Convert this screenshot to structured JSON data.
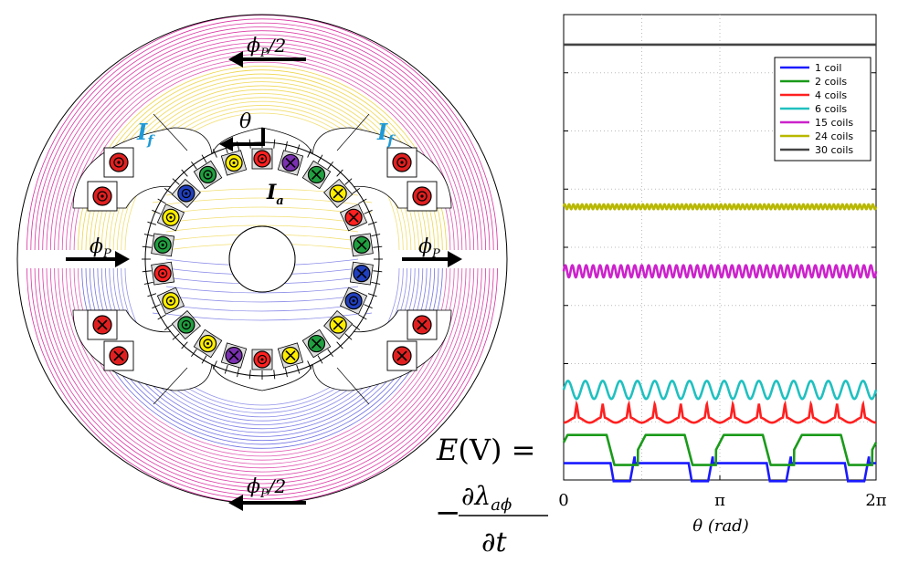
{
  "diagram": {
    "flux_top_label": "ϕ",
    "flux_top_sub": "P",
    "flux_top_suffix": "/2",
    "flux_bottom_label": "ϕ",
    "flux_bottom_sub": "P",
    "flux_bottom_suffix": "/2",
    "flux_left_label": "ϕ",
    "flux_left_sub": "P",
    "flux_right_label": "ϕ",
    "flux_right_sub": "P",
    "theta_label": "θ",
    "field_current_left": "I",
    "field_current_left_sub": "f",
    "field_current_right": "I",
    "field_current_right_sub": "f",
    "armature_current": "I",
    "armature_current_sub": "a",
    "colors": {
      "field_label": "#1f9ad6",
      "flux_warm": "#e8c400",
      "flux_pink": "#d6229a",
      "flux_blue": "#2a2ad6"
    },
    "rotor_conductors": [
      {
        "color": "#ff2020",
        "mark": "dot"
      },
      {
        "color": "#7a30b0",
        "mark": "cross"
      },
      {
        "color": "#20a040",
        "mark": "cross"
      },
      {
        "color": "#ffee00",
        "mark": "cross"
      },
      {
        "color": "#ff2020",
        "mark": "cross"
      },
      {
        "color": "#20a040",
        "mark": "cross"
      },
      {
        "color": "#2040c0",
        "mark": "cross"
      },
      {
        "color": "#2040c0",
        "mark": "dot"
      },
      {
        "color": "#ffee00",
        "mark": "cross"
      },
      {
        "color": "#20a040",
        "mark": "cross"
      },
      {
        "color": "#ffee00",
        "mark": "cross"
      },
      {
        "color": "#ff2020",
        "mark": "dot"
      },
      {
        "color": "#7a30b0",
        "mark": "cross"
      },
      {
        "color": "#ffee00",
        "mark": "dot"
      },
      {
        "color": "#20a040",
        "mark": "dot"
      },
      {
        "color": "#ffee00",
        "mark": "dot"
      },
      {
        "color": "#ff2020",
        "mark": "dot"
      },
      {
        "color": "#20a040",
        "mark": "dot"
      },
      {
        "color": "#ffee00",
        "mark": "dot"
      },
      {
        "color": "#2040c0",
        "mark": "dot"
      },
      {
        "color": "#20a040",
        "mark": "dot"
      },
      {
        "color": "#ffee00",
        "mark": "dot"
      }
    ],
    "field_coils": [
      {
        "position": "upper-left-1",
        "mark": "dot"
      },
      {
        "position": "upper-left-2",
        "mark": "dot"
      },
      {
        "position": "upper-right-1",
        "mark": "dot"
      },
      {
        "position": "upper-right-2",
        "mark": "dot"
      },
      {
        "position": "lower-left-1",
        "mark": "cross"
      },
      {
        "position": "lower-left-2",
        "mark": "cross"
      },
      {
        "position": "lower-right-1",
        "mark": "cross"
      },
      {
        "position": "lower-right-2",
        "mark": "cross"
      }
    ]
  },
  "equation": {
    "lhs": "E(V) =",
    "minus": "−",
    "numerator": "∂λ",
    "numerator_sub": "aϕ",
    "denominator": "∂t"
  },
  "chart_data": {
    "type": "line",
    "title": "",
    "xlabel": "θ (rad)",
    "ylabel": "",
    "x_ticks": [
      "0",
      "π",
      "2π"
    ],
    "xlim": [
      0,
      6.2832
    ],
    "grid": true,
    "legend_position": "top-right",
    "series": [
      {
        "name": "1 coil",
        "color": "#1a1aff",
        "shape": "square-wave",
        "level": 0.02,
        "amplitude": 0.06,
        "periods": 4,
        "duty": 0.75
      },
      {
        "name": "2 coils",
        "color": "#1a9a1a",
        "shape": "trapezoid-wave",
        "level": 0.1,
        "amplitude": 0.1,
        "periods": 4,
        "duty": 0.6
      },
      {
        "name": "4 coils",
        "color": "#ff2020",
        "shape": "pulse-wave",
        "level": 0.2,
        "amplitude": 0.045,
        "periods": 12
      },
      {
        "name": "6 coils",
        "color": "#20c0c0",
        "shape": "ripple",
        "level": 0.3,
        "amplitude": 0.03,
        "periods": 18
      },
      {
        "name": "15 coils",
        "color": "#cc22cc",
        "shape": "ripple",
        "level": 0.695,
        "amplitude": 0.02,
        "periods": 45
      },
      {
        "name": "24 coils",
        "color": "#b8b800",
        "shape": "ripple",
        "level": 0.91,
        "amplitude": 0.008,
        "periods": 72
      },
      {
        "name": "30 coils",
        "color": "#444444",
        "shape": "flat",
        "level": 1.45,
        "amplitude": 0,
        "periods": 0
      }
    ]
  }
}
